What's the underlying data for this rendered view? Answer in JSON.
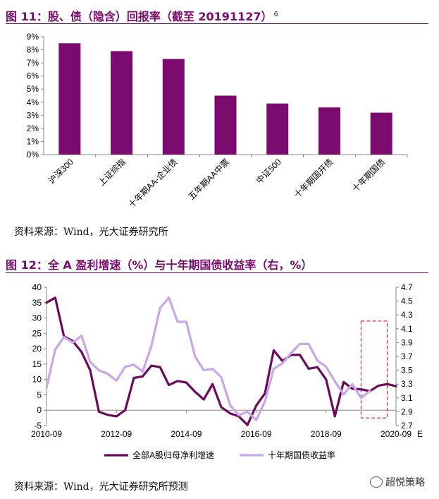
{
  "figure1": {
    "title": "图 11：股、债（隐含）回报率（截至 20191127）",
    "footnote": "6",
    "source": "资料来源：Wind，光大证券研究所"
  },
  "figure2": {
    "title": "图 12：全 A 盈利增速（%）与十年期国债收益率（右，%）",
    "source": "资料来源：Wind，光大证券研究所预测"
  },
  "watermark": {
    "text": "超悦策略",
    "icon": "wechat-icon"
  },
  "chart_data": [
    {
      "type": "bar",
      "categories": [
        "沪深300",
        "上证综指",
        "十年期AA-企业债",
        "五年期AA中票",
        "中证500",
        "十年期国开债",
        "十年期国债"
      ],
      "values": [
        8.5,
        7.9,
        7.3,
        4.5,
        3.9,
        3.6,
        3.2
      ],
      "ylim": [
        0,
        9
      ],
      "yticks": [
        "0%",
        "1%",
        "2%",
        "3%",
        "4%",
        "5%",
        "6%",
        "7%",
        "8%",
        "9%"
      ],
      "color": "#7b0b6e",
      "grid": false
    },
    {
      "type": "line",
      "xlim": [
        2010.75,
        2020.75
      ],
      "xticks": [
        {
          "x": 2010.75,
          "label": "2010-09"
        },
        {
          "x": 2012.75,
          "label": "2012-09"
        },
        {
          "x": 2014.75,
          "label": "2014-09"
        },
        {
          "x": 2016.75,
          "label": "2016-09"
        },
        {
          "x": 2018.75,
          "label": "2018-09"
        },
        {
          "x": 2020.75,
          "label": "2020-09"
        }
      ],
      "ylim": [
        -5,
        40
      ],
      "yticks": [
        -5,
        0,
        5,
        10,
        15,
        20,
        25,
        30,
        35,
        40
      ],
      "y2lim": [
        2.7,
        4.7
      ],
      "y2ticks": [
        "2.7",
        "2.9",
        "3.1",
        "3.3",
        "3.5",
        "3.7",
        "3.9",
        "4.1",
        "4.3",
        "4.5",
        "4.7"
      ],
      "forecast_label": "E",
      "forecast_box": {
        "x": [
          2019.75,
          2020.5
        ],
        "y": [
          -2.5,
          29
        ]
      },
      "series": [
        {
          "name": "全部A股归母净利增速",
          "axis": "left",
          "color": "#6a0a5e",
          "points": [
            [
              2010.75,
              35
            ],
            [
              2011.0,
              36.6
            ],
            [
              2011.25,
              24
            ],
            [
              2011.5,
              22.5
            ],
            [
              2011.75,
              19
            ],
            [
              2012.0,
              13
            ],
            [
              2012.25,
              -0.5
            ],
            [
              2012.5,
              -1.5
            ],
            [
              2012.75,
              -2
            ],
            [
              2013.0,
              0
            ],
            [
              2013.25,
              10.5
            ],
            [
              2013.5,
              11
            ],
            [
              2013.75,
              14.5
            ],
            [
              2014.0,
              14
            ],
            [
              2014.25,
              8.2
            ],
            [
              2014.5,
              9.5
            ],
            [
              2014.75,
              9
            ],
            [
              2015.0,
              6
            ],
            [
              2015.25,
              3.5
            ],
            [
              2015.5,
              8.5
            ],
            [
              2015.75,
              1
            ],
            [
              2016.0,
              -1
            ],
            [
              2016.25,
              -2
            ],
            [
              2016.5,
              -4.8
            ],
            [
              2016.75,
              1.5
            ],
            [
              2017.0,
              5.5
            ],
            [
              2017.25,
              19.5
            ],
            [
              2017.5,
              16
            ],
            [
              2017.75,
              18
            ],
            [
              2018.0,
              18
            ],
            [
              2018.25,
              13.5
            ],
            [
              2018.5,
              14
            ],
            [
              2018.75,
              10
            ],
            [
              2019.0,
              -2
            ],
            [
              2019.25,
              9.2
            ],
            [
              2019.5,
              7
            ],
            [
              2019.75,
              6.8
            ],
            [
              2020.0,
              6.2
            ],
            [
              2020.25,
              8
            ],
            [
              2020.5,
              8.5
            ],
            [
              2020.75,
              7.8
            ]
          ]
        },
        {
          "name": "十年期国债收益率",
          "axis": "right",
          "color": "#c9a6e9",
          "points": [
            [
              2010.75,
              3.25
            ],
            [
              2011.0,
              3.8
            ],
            [
              2011.25,
              3.98
            ],
            [
              2011.5,
              3.9
            ],
            [
              2011.75,
              4.0
            ],
            [
              2012.0,
              3.62
            ],
            [
              2012.25,
              3.5
            ],
            [
              2012.5,
              3.45
            ],
            [
              2012.75,
              3.35
            ],
            [
              2013.0,
              3.55
            ],
            [
              2013.25,
              3.58
            ],
            [
              2013.5,
              3.48
            ],
            [
              2013.75,
              3.85
            ],
            [
              2014.0,
              4.4
            ],
            [
              2014.25,
              4.55
            ],
            [
              2014.5,
              4.2
            ],
            [
              2014.75,
              4.2
            ],
            [
              2015.0,
              3.7
            ],
            [
              2015.25,
              3.5
            ],
            [
              2015.5,
              3.52
            ],
            [
              2015.75,
              3.4
            ],
            [
              2016.0,
              3.0
            ],
            [
              2016.25,
              2.85
            ],
            [
              2016.5,
              2.9
            ],
            [
              2016.75,
              2.78
            ],
            [
              2017.0,
              3.05
            ],
            [
              2017.25,
              3.52
            ],
            [
              2017.5,
              3.6
            ],
            [
              2017.75,
              3.75
            ],
            [
              2018.0,
              3.88
            ],
            [
              2018.25,
              3.88
            ],
            [
              2018.5,
              3.64
            ],
            [
              2018.75,
              3.55
            ],
            [
              2019.0,
              3.34
            ],
            [
              2019.25,
              3.15
            ],
            [
              2019.5,
              3.3
            ],
            [
              2019.75,
              3.1
            ],
            [
              2020.0,
              3.2
            ]
          ]
        }
      ]
    }
  ]
}
